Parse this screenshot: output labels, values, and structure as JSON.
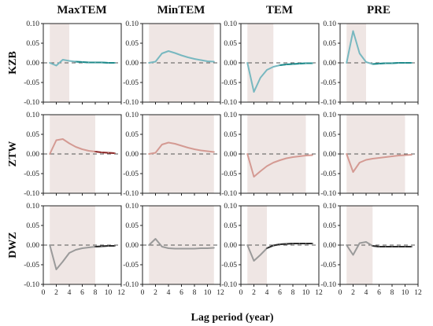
{
  "chart_data": {
    "type": "line",
    "columns": [
      "MaxTEM",
      "MinTEM",
      "TEM",
      "PRE"
    ],
    "rows": [
      "KZB",
      "ZTW",
      "DWZ"
    ],
    "xlabel": "Lag period (year)",
    "xlim": [
      0,
      12
    ],
    "xticks": [
      0,
      2,
      4,
      6,
      8,
      10,
      12
    ],
    "ylim": [
      -0.1,
      0.1
    ],
    "yticks": [
      0.1,
      0.05,
      0.0,
      -0.05,
      -0.1
    ],
    "ytick_labels": [
      "0.10",
      "0.05",
      "0.00",
      "-0.05",
      "-0.10"
    ],
    "x": [
      1,
      2,
      3,
      4,
      5,
      6,
      7,
      8,
      9,
      10,
      11
    ],
    "row_colors": {
      "KZB": "#78b8c0",
      "ZTW": "#d49a93",
      "DWZ": "#9a9a9a"
    },
    "tail_colors": {
      "KZB": "#1f8a8a",
      "ZTW": "#8c2a2a",
      "DWZ": "#2a2a2a"
    },
    "shade_color": "#efe6e4",
    "panels": [
      {
        "row": "KZB",
        "col": "MaxTEM",
        "shade": [
          1,
          4
        ],
        "tail_from": 5,
        "values": [
          0.0,
          -0.007,
          0.008,
          0.005,
          0.003,
          0.002,
          0.001,
          0.001,
          0.001,
          0.0,
          0.0
        ]
      },
      {
        "row": "KZB",
        "col": "MinTEM",
        "shade": [
          1,
          11
        ],
        "tail_from": null,
        "values": [
          0.0,
          0.003,
          0.024,
          0.03,
          0.025,
          0.019,
          0.014,
          0.01,
          0.007,
          0.004,
          0.003
        ]
      },
      {
        "row": "KZB",
        "col": "TEM",
        "shade": [
          1,
          5
        ],
        "tail_from": 6,
        "values": [
          0.0,
          -0.074,
          -0.038,
          -0.018,
          -0.01,
          -0.006,
          -0.004,
          -0.003,
          -0.002,
          -0.001,
          -0.001
        ]
      },
      {
        "row": "KZB",
        "col": "PRE",
        "shade": [
          1,
          4
        ],
        "tail_from": 5,
        "values": [
          0.0,
          0.081,
          0.024,
          0.002,
          -0.003,
          -0.002,
          -0.001,
          -0.001,
          0.0,
          0.0,
          0.0
        ]
      },
      {
        "row": "ZTW",
        "col": "MaxTEM",
        "shade": [
          1,
          8
        ],
        "tail_from": 8,
        "values": [
          0.0,
          0.035,
          0.038,
          0.027,
          0.018,
          0.012,
          0.008,
          0.006,
          0.004,
          0.003,
          0.002
        ]
      },
      {
        "row": "ZTW",
        "col": "MinTEM",
        "shade": [
          1,
          11
        ],
        "tail_from": null,
        "values": [
          0.0,
          0.003,
          0.024,
          0.029,
          0.026,
          0.021,
          0.016,
          0.012,
          0.009,
          0.007,
          0.005
        ]
      },
      {
        "row": "ZTW",
        "col": "TEM",
        "shade": [
          1,
          10
        ],
        "tail_from": null,
        "values": [
          0.0,
          -0.058,
          -0.044,
          -0.031,
          -0.022,
          -0.016,
          -0.011,
          -0.008,
          -0.006,
          -0.004,
          -0.003
        ]
      },
      {
        "row": "ZTW",
        "col": "PRE",
        "shade": [
          1,
          10
        ],
        "tail_from": null,
        "values": [
          0.0,
          -0.046,
          -0.022,
          -0.015,
          -0.012,
          -0.01,
          -0.008,
          -0.006,
          -0.004,
          -0.003,
          -0.002
        ]
      },
      {
        "row": "DWZ",
        "col": "MaxTEM",
        "shade": [
          1,
          8
        ],
        "tail_from": 8,
        "values": [
          0.0,
          -0.062,
          -0.042,
          -0.02,
          -0.012,
          -0.008,
          -0.006,
          -0.004,
          -0.003,
          -0.002,
          -0.002
        ]
      },
      {
        "row": "DWZ",
        "col": "MinTEM",
        "shade": [
          1,
          11
        ],
        "tail_from": null,
        "values": [
          0.0,
          0.016,
          -0.004,
          -0.008,
          -0.009,
          -0.009,
          -0.009,
          -0.009,
          -0.008,
          -0.008,
          -0.007
        ]
      },
      {
        "row": "DWZ",
        "col": "TEM",
        "shade": [
          1,
          4
        ],
        "tail_from": 4,
        "values": [
          0.0,
          -0.04,
          -0.025,
          -0.008,
          -0.001,
          0.002,
          0.003,
          0.004,
          0.004,
          0.004,
          0.004
        ]
      },
      {
        "row": "DWZ",
        "col": "PRE",
        "shade": [
          1,
          5
        ],
        "tail_from": 5,
        "values": [
          0.0,
          -0.025,
          0.005,
          0.008,
          -0.002,
          -0.004,
          -0.004,
          -0.004,
          -0.004,
          -0.004,
          -0.004
        ]
      }
    ]
  }
}
